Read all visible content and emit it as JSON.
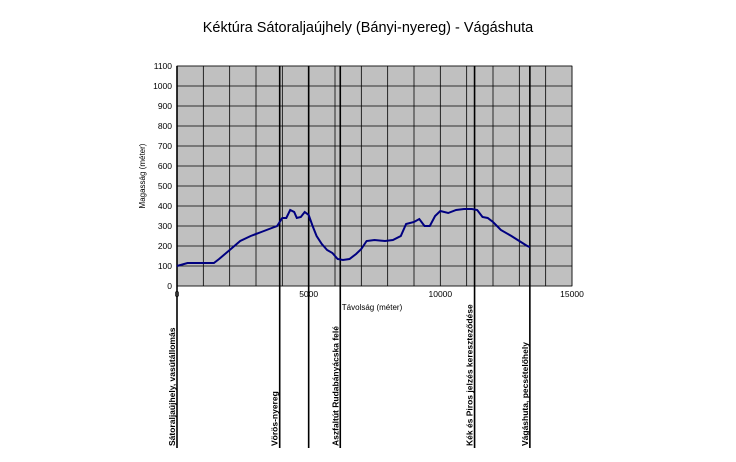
{
  "chart_data": {
    "type": "line",
    "title": "Kéktúra Sátoraljaújhely (Bányi-nyereg) - Vágáshuta",
    "xlabel": "Távolság (méter)",
    "ylabel": "Magasság (méter)",
    "xlim": [
      0,
      15000
    ],
    "ylim": [
      0,
      1100
    ],
    "x_ticks": [
      0,
      5000,
      10000,
      15000
    ],
    "y_ticks": [
      0,
      100,
      200,
      300,
      400,
      500,
      600,
      700,
      800,
      900,
      1000,
      1100
    ],
    "x_tick_labels": [
      "0",
      "5000",
      "10000",
      "15000"
    ],
    "y_tick_labels": [
      "0",
      "100",
      "200",
      "300",
      "400",
      "500",
      "600",
      "700",
      "800",
      "900",
      "1000",
      "1100"
    ],
    "grid": true,
    "plot_background": "#c0c0c0",
    "line_color": "#000080",
    "series": [
      {
        "x": [
          0,
          400,
          800,
          1400,
          1600,
          2000,
          2400,
          2800,
          3200,
          3600,
          3800,
          4000,
          4150,
          4300,
          4450,
          4550,
          4700,
          4850,
          5000,
          5150,
          5300,
          5500,
          5700,
          5900,
          6100,
          6300,
          6550,
          6800,
          7000,
          7200,
          7500,
          7900,
          8200,
          8500,
          8700,
          9000,
          9200,
          9400,
          9600,
          9800,
          10000,
          10300,
          10600,
          10900,
          11200,
          11400,
          11600,
          11800,
          12000,
          12300,
          12700,
          13000,
          13300,
          13400
        ],
        "y": [
          100,
          115,
          115,
          115,
          135,
          180,
          225,
          250,
          270,
          290,
          300,
          340,
          340,
          380,
          370,
          340,
          345,
          370,
          355,
          300,
          250,
          210,
          180,
          165,
          135,
          130,
          135,
          160,
          185,
          225,
          230,
          225,
          230,
          250,
          310,
          320,
          335,
          300,
          300,
          350,
          375,
          365,
          380,
          385,
          385,
          380,
          345,
          340,
          320,
          280,
          250,
          225,
          200,
          195
        ]
      }
    ],
    "markers": [
      {
        "x": 0,
        "label": "Sátoraljaújhely, vasútállomás"
      },
      {
        "x": 3900,
        "label": "Vörös-nyereg"
      },
      {
        "x": 5000,
        "label": ""
      },
      {
        "x": 6200,
        "label": "Aszfaltút Rudabányácska felé"
      },
      {
        "x": 11300,
        "label": "Kék és Piros jelzés kereszteződése"
      },
      {
        "x": 13400,
        "label": "Vágáshuta, pecsételőhely"
      }
    ]
  }
}
